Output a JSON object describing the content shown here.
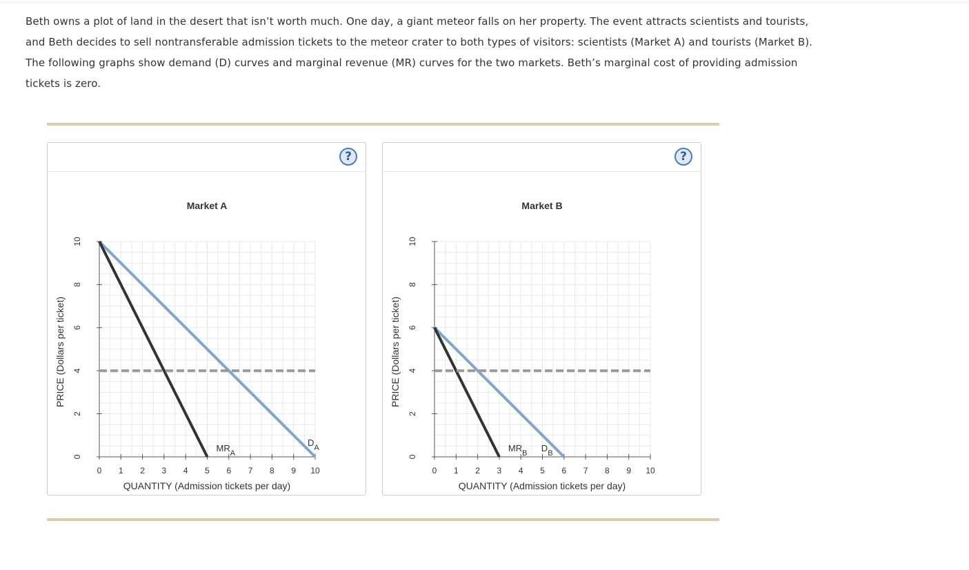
{
  "intro": {
    "line1": "Beth owns a plot of land in the desert that isn’t worth much. One day, a giant meteor falls on her property. The event attracts scientists and tourists,",
    "line2": "and Beth decides to sell nontransferable admission tickets to the meteor crater to both types of visitors: scientists (Market A) and tourists (Market B).",
    "line3": "The following graphs show demand (D) curves and marginal revenue (MR) curves for the two markets. Beth’s marginal cost of providing admission",
    "line4": "tickets is zero."
  },
  "help": {
    "label": "?"
  },
  "colors": {
    "demand": "#7fa6cc",
    "mr": "#333333",
    "price_line": "#999999",
    "grid": "#e8e8e8",
    "rule": "#d9cfa8"
  },
  "chart_data": [
    {
      "type": "line",
      "title": "Market A",
      "xlabel": "QUANTITY (Admission tickets per day)",
      "ylabel": "PRICE (Dollars per ticket)",
      "xlim": [
        0,
        10
      ],
      "ylim": [
        0,
        10
      ],
      "x_ticks": [
        "0",
        "1",
        "2",
        "3",
        "4",
        "5",
        "6",
        "7",
        "8",
        "9",
        "10"
      ],
      "y_ticks": [
        "0",
        "2",
        "4",
        "6",
        "8",
        "10"
      ],
      "grid": true,
      "series": [
        {
          "name": "D",
          "sub": "A",
          "role": "demand",
          "x": [
            0,
            10
          ],
          "y": [
            10,
            0
          ]
        },
        {
          "name": "MR",
          "sub": "A",
          "role": "mr",
          "x": [
            0,
            5
          ],
          "y": [
            10,
            0
          ]
        },
        {
          "name": "Price",
          "role": "price",
          "dashed": true,
          "x": [
            0,
            10
          ],
          "y": [
            4,
            4
          ]
        }
      ]
    },
    {
      "type": "line",
      "title": "Market B",
      "xlabel": "QUANTITY (Admission tickets per day)",
      "ylabel": "PRICE (Dollars per ticket)",
      "xlim": [
        0,
        10
      ],
      "ylim": [
        0,
        10
      ],
      "x_ticks": [
        "0",
        "1",
        "2",
        "3",
        "4",
        "5",
        "6",
        "7",
        "8",
        "9",
        "10"
      ],
      "y_ticks": [
        "0",
        "2",
        "4",
        "6",
        "8",
        "10"
      ],
      "grid": true,
      "series": [
        {
          "name": "D",
          "sub": "B",
          "role": "demand",
          "x": [
            0,
            6
          ],
          "y": [
            6,
            0
          ]
        },
        {
          "name": "MR",
          "sub": "B",
          "role": "mr",
          "x": [
            0,
            3
          ],
          "y": [
            6,
            0
          ]
        },
        {
          "name": "Price",
          "role": "price",
          "dashed": true,
          "x": [
            0,
            10
          ],
          "y": [
            4,
            4
          ]
        }
      ]
    }
  ]
}
